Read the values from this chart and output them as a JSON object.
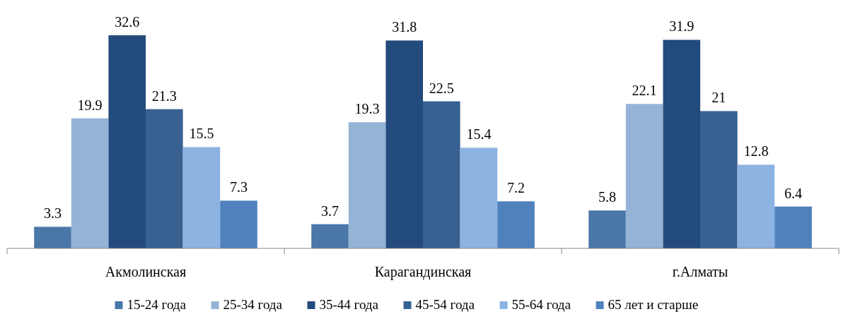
{
  "chart_data": {
    "type": "bar",
    "categories": [
      "Акмолинская",
      "Карагандинская",
      "г.Алматы"
    ],
    "series": [
      {
        "name": "15-24 года",
        "color": "#4a76a8",
        "values": [
          3.3,
          3.7,
          5.8
        ]
      },
      {
        "name": "25-34 года",
        "color": "#95b3d7",
        "values": [
          19.9,
          19.3,
          22.1
        ]
      },
      {
        "name": "35-44 года",
        "color": "#234a7c",
        "values": [
          32.6,
          31.8,
          31.9
        ]
      },
      {
        "name": "45-54 года",
        "color": "#386192",
        "values": [
          21.3,
          22.5,
          21
        ]
      },
      {
        "name": "55-64 года",
        "color": "#8db3e2",
        "values": [
          15.5,
          15.4,
          12.8
        ]
      },
      {
        "name": "65 лет и старше",
        "color": "#4f81bd",
        "values": [
          7.3,
          7.2,
          6.4
        ]
      }
    ],
    "data_labels": true,
    "legend": "bottom"
  }
}
